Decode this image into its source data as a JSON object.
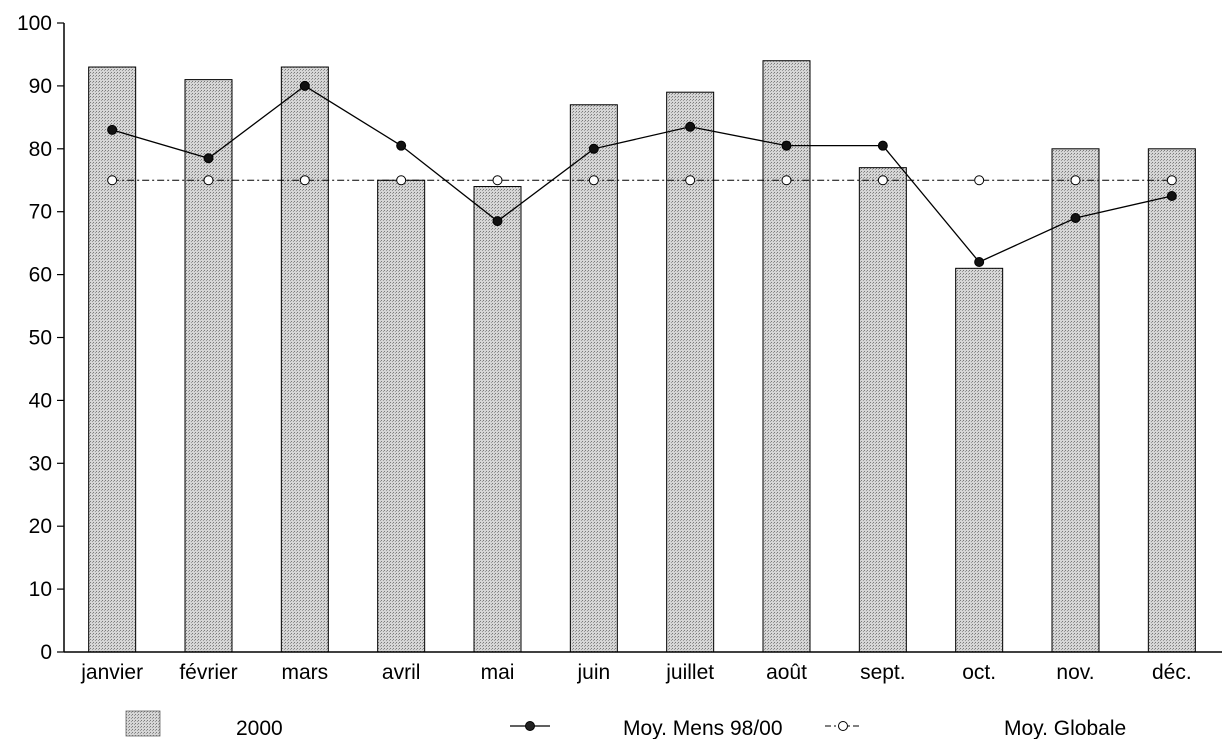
{
  "chart_data": {
    "type": "bar",
    "categories": [
      "janvier",
      "février",
      "mars",
      "avril",
      "mai",
      "juin",
      "juillet",
      "août",
      "sept.",
      "oct.",
      "nov.",
      "déc."
    ],
    "series": [
      {
        "name": "2000",
        "type": "bar",
        "values": [
          93,
          91,
          93,
          75,
          74,
          87,
          89,
          94,
          77,
          61,
          80,
          80
        ]
      },
      {
        "name": "Moy. Mens 98/00",
        "type": "line",
        "values": [
          83,
          78.5,
          90,
          80.5,
          68.5,
          80,
          83.5,
          80.5,
          80.5,
          62,
          69,
          72.5
        ]
      },
      {
        "name": "Moy. Globale",
        "type": "line",
        "values": [
          75,
          75,
          75,
          75,
          75,
          75,
          75,
          75,
          75,
          75,
          75,
          75
        ]
      }
    ],
    "ylim": [
      0,
      100
    ],
    "yticks": [
      "0",
      "10",
      "20",
      "30",
      "40",
      "50",
      "60",
      "70",
      "80",
      "90",
      "100"
    ],
    "grid": false,
    "legend_position": "bottom",
    "colors": {
      "bar_fill": "#c8c8c8",
      "bar_stroke": "#000000",
      "line": "#000000"
    }
  }
}
